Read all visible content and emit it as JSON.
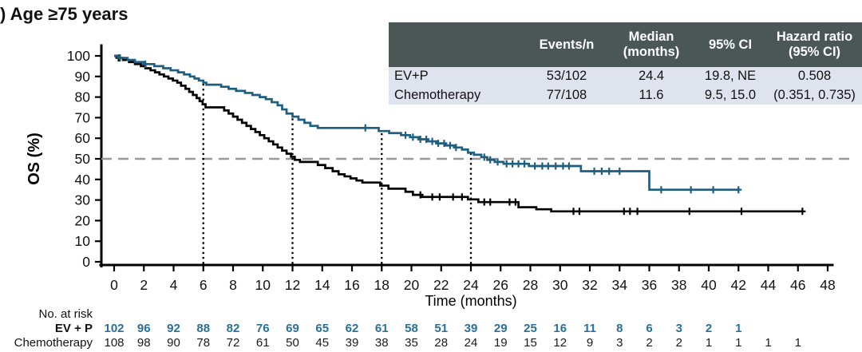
{
  "title": ") Age ≥75 years",
  "colors": {
    "ev_p": "#1e5e7e",
    "ev_p_text": "#2a6f97",
    "chemotherapy": "#000000",
    "median_dash": "#999999",
    "table_header_bg": "#4b5657",
    "table_row_bg": "#dfe3ee"
  },
  "stats_table": {
    "headers": [
      "",
      "Events/n",
      "Median\n(months)",
      "95% CI",
      "Hazard ratio\n(95% CI)"
    ],
    "rows": [
      {
        "label": "EV+P",
        "events_n": "53/102",
        "median": "24.4",
        "ci": "19.8, NE",
        "hr": "0.508"
      },
      {
        "label": "Chemotherapy",
        "events_n": "77/108",
        "median": "11.6",
        "ci": "9.5, 15.0",
        "hr": "(0.351, 0.735)"
      }
    ]
  },
  "chart_data": {
    "type": "line",
    "subtype": "kaplan-meier",
    "title": ") Age ≥75 years",
    "xlabel": "Time (months)",
    "ylabel": "OS (%)",
    "xlim": [
      0,
      48
    ],
    "xtick_step": 2,
    "ylim": [
      0,
      100
    ],
    "ytick_step": 10,
    "grid": false,
    "median_line_y": 50,
    "landmark_times": [
      6,
      12,
      18,
      24
    ],
    "series": [
      {
        "name": "EV+P",
        "color": "#1e5e7e",
        "end": 42.1,
        "steps": [
          [
            0,
            100
          ],
          [
            0.3,
            99
          ],
          [
            0.9,
            98
          ],
          [
            1.4,
            97
          ],
          [
            2.0,
            96
          ],
          [
            2.7,
            95
          ],
          [
            3.3,
            94
          ],
          [
            3.8,
            93
          ],
          [
            4.3,
            92
          ],
          [
            4.7,
            91
          ],
          [
            5.1,
            90
          ],
          [
            5.4,
            89
          ],
          [
            5.7,
            88
          ],
          [
            6.0,
            87
          ],
          [
            6.2,
            86
          ],
          [
            7.2,
            85
          ],
          [
            7.7,
            84
          ],
          [
            8.2,
            83
          ],
          [
            8.8,
            82
          ],
          [
            9.3,
            81
          ],
          [
            9.8,
            80
          ],
          [
            10.2,
            79
          ],
          [
            10.6,
            77.5
          ],
          [
            11.0,
            76
          ],
          [
            11.3,
            74
          ],
          [
            11.6,
            72
          ],
          [
            12.0,
            70.5
          ],
          [
            12.4,
            69
          ],
          [
            12.8,
            67.5
          ],
          [
            13.2,
            66
          ],
          [
            13.7,
            65
          ],
          [
            17.8,
            63.5
          ],
          [
            18.5,
            62.5
          ],
          [
            19.3,
            61.5
          ],
          [
            19.9,
            60.5
          ],
          [
            20.5,
            59.5
          ],
          [
            21.1,
            58.5
          ],
          [
            21.7,
            57.5
          ],
          [
            22.3,
            56.5
          ],
          [
            22.9,
            55.5
          ],
          [
            23.4,
            54.5
          ],
          [
            23.8,
            53
          ],
          [
            24.2,
            52
          ],
          [
            24.7,
            50.8
          ],
          [
            25.1,
            49.5
          ],
          [
            25.6,
            48.5
          ],
          [
            26.2,
            47.6
          ],
          [
            27.9,
            46.5
          ],
          [
            31.4,
            44
          ],
          [
            36.0,
            35
          ]
        ],
        "censors": [
          0.4,
          2.1,
          16.9,
          19.6,
          20.1,
          20.6,
          21.0,
          21.4,
          21.8,
          22.2,
          22.6,
          23.0,
          24.9,
          25.3,
          25.8,
          26.4,
          26.8,
          27.2,
          27.6,
          28.3,
          28.8,
          29.2,
          29.7,
          30.2,
          30.6,
          32.3,
          32.8,
          33.3,
          34.0,
          36.8,
          38.8,
          40.3,
          42.0
        ]
      },
      {
        "name": "Chemotherapy",
        "color": "#000000",
        "end": 46.4,
        "steps": [
          [
            0,
            100
          ],
          [
            0.25,
            99
          ],
          [
            0.6,
            98
          ],
          [
            1.0,
            97
          ],
          [
            1.4,
            96
          ],
          [
            1.8,
            95
          ],
          [
            2.1,
            94
          ],
          [
            2.45,
            93
          ],
          [
            2.75,
            92
          ],
          [
            3.05,
            91
          ],
          [
            3.35,
            90
          ],
          [
            3.65,
            89
          ],
          [
            3.95,
            88
          ],
          [
            4.25,
            87
          ],
          [
            4.5,
            85.5
          ],
          [
            4.8,
            84
          ],
          [
            5.05,
            82.5
          ],
          [
            5.3,
            81
          ],
          [
            5.55,
            79.5
          ],
          [
            5.75,
            78
          ],
          [
            5.95,
            76.5
          ],
          [
            6.15,
            75
          ],
          [
            7.4,
            73.5
          ],
          [
            7.7,
            72
          ],
          [
            8.0,
            70.5
          ],
          [
            8.3,
            69
          ],
          [
            8.6,
            67.5
          ],
          [
            8.9,
            66
          ],
          [
            9.2,
            64.5
          ],
          [
            9.5,
            63
          ],
          [
            9.8,
            61.5
          ],
          [
            10.1,
            60
          ],
          [
            10.4,
            58.5
          ],
          [
            10.7,
            57
          ],
          [
            11.0,
            55.5
          ],
          [
            11.3,
            54
          ],
          [
            11.6,
            52.5
          ],
          [
            11.9,
            51
          ],
          [
            12.15,
            49.5
          ],
          [
            12.5,
            48.5
          ],
          [
            13.7,
            47
          ],
          [
            14.2,
            45.5
          ],
          [
            14.7,
            44
          ],
          [
            15.1,
            42.5
          ],
          [
            15.5,
            41.5
          ],
          [
            15.9,
            40.5
          ],
          [
            16.3,
            39.5
          ],
          [
            16.7,
            38.5
          ],
          [
            17.9,
            37
          ],
          [
            18.45,
            35.5
          ],
          [
            19.6,
            34
          ],
          [
            20.1,
            32.5
          ],
          [
            20.7,
            31.5
          ],
          [
            23.8,
            30.3
          ],
          [
            24.5,
            29
          ],
          [
            27.2,
            26.5
          ],
          [
            28.4,
            25.5
          ],
          [
            29.4,
            24.5
          ]
        ],
        "censors": [
          0.3,
          20.6,
          21.4,
          21.9,
          22.8,
          23.4,
          24.9,
          25.3,
          26.6,
          27.0,
          30.9,
          31.3,
          34.3,
          34.7,
          35.2,
          38.7,
          42.2,
          46.3
        ]
      }
    ],
    "risk_table": {
      "label": "No. at risk",
      "start_time": 0,
      "interval": 2,
      "rows": [
        {
          "name": "EV + P",
          "color": "#2a6f97",
          "bold": true,
          "counts": [
            102,
            96,
            92,
            88,
            82,
            76,
            69,
            65,
            62,
            61,
            58,
            51,
            39,
            29,
            25,
            16,
            11,
            8,
            6,
            3,
            2,
            1
          ]
        },
        {
          "name": "Chemotherapy",
          "color": "#1a1a1a",
          "bold": false,
          "counts": [
            108,
            98,
            90,
            78,
            72,
            61,
            50,
            45,
            39,
            38,
            35,
            28,
            24,
            19,
            15,
            12,
            9,
            3,
            2,
            2,
            1,
            1,
            1,
            1
          ]
        }
      ]
    }
  }
}
